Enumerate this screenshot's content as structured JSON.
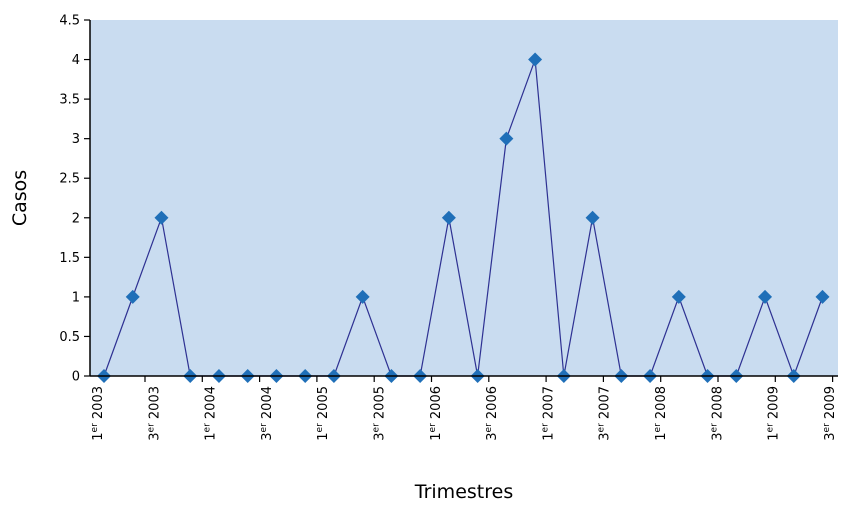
{
  "chart_data": {
    "type": "line",
    "title": "",
    "xlabel": "Trimestres",
    "ylabel": "Casos",
    "ylim": [
      0,
      4.5
    ],
    "yticks": [
      "0",
      "0.5",
      "1",
      "1.5",
      "2",
      "2.5",
      "3",
      "3.5",
      "4",
      "4.5"
    ],
    "xtick_labels": [
      {
        "ord": "1",
        "sup": "er",
        "year": "2003"
      },
      {
        "ord": "3",
        "sup": "er",
        "year": "2003"
      },
      {
        "ord": "1",
        "sup": "er",
        "year": "2004"
      },
      {
        "ord": "3",
        "sup": "er",
        "year": "2004"
      },
      {
        "ord": "1",
        "sup": "er",
        "year": "2005"
      },
      {
        "ord": "3",
        "sup": "er",
        "year": "2005"
      },
      {
        "ord": "1",
        "sup": "er",
        "year": "2006"
      },
      {
        "ord": "3",
        "sup": "er",
        "year": "2006"
      },
      {
        "ord": "1",
        "sup": "er",
        "year": "2007"
      },
      {
        "ord": "3",
        "sup": "er",
        "year": "2007"
      },
      {
        "ord": "1",
        "sup": "er",
        "year": "2008"
      },
      {
        "ord": "3",
        "sup": "er",
        "year": "2008"
      },
      {
        "ord": "1",
        "sup": "er",
        "year": "2009"
      },
      {
        "ord": "3",
        "sup": "er",
        "year": "2009"
      }
    ],
    "series": [
      {
        "values": [
          0,
          1,
          2,
          0,
          0,
          0,
          0,
          0,
          0,
          1,
          0,
          0,
          2,
          0,
          3,
          4,
          0,
          2,
          0,
          0,
          1,
          0,
          0,
          1,
          0,
          1
        ]
      }
    ],
    "grid": false,
    "colors": {
      "plot_background": "#c9dcf0",
      "line": "#2e3192",
      "marker": "#1f6fb8"
    }
  }
}
